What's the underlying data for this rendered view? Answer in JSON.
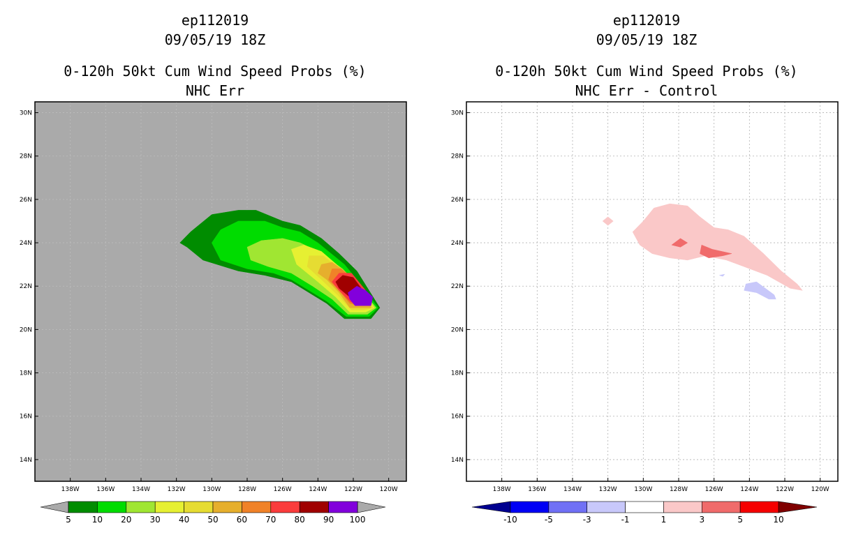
{
  "chart_data": [
    {
      "type": "filled-contour-map",
      "title_lines": [
        "ep112019",
        "09/05/19 18Z",
        "0-120h 50kt Cum Wind Speed Probs (%)",
        "NHC Err"
      ],
      "background_color": "#aaaaaa",
      "xlim": [
        -140,
        -119
      ],
      "ylim": [
        13,
        30.5
      ],
      "x_ticks": [
        "138W",
        "136W",
        "134W",
        "132W",
        "130W",
        "128W",
        "126W",
        "124W",
        "122W",
        "120W"
      ],
      "y_ticks": [
        "30N",
        "28N",
        "26N",
        "24N",
        "22N",
        "20N",
        "18N",
        "16N",
        "14N"
      ],
      "colorbar": {
        "labels": [
          "5",
          "10",
          "20",
          "30",
          "40",
          "50",
          "60",
          "70",
          "80",
          "90",
          "100"
        ],
        "colors": [
          "#008c00",
          "#00dc00",
          "#a0e632",
          "#e6f032",
          "#e6dc32",
          "#e6af2d",
          "#f08228",
          "#fa3c3c",
          "#a00000",
          "#8200dc"
        ],
        "left_extend_color": "#aaaaaa",
        "right_extend_color": "#aaaaaa"
      },
      "contours": [
        {
          "level": 5,
          "color": "#008c00",
          "points": [
            [
              -131.8,
              24.0
            ],
            [
              -131.2,
              24.5
            ],
            [
              -130.0,
              25.3
            ],
            [
              -128.5,
              25.5
            ],
            [
              -127.5,
              25.5
            ],
            [
              -126.0,
              25.0
            ],
            [
              -125.0,
              24.8
            ],
            [
              -123.8,
              24.2
            ],
            [
              -122.8,
              23.5
            ],
            [
              -121.8,
              22.7
            ],
            [
              -120.5,
              21.0
            ],
            [
              -121.0,
              20.5
            ],
            [
              -122.5,
              20.5
            ],
            [
              -123.5,
              21.2
            ],
            [
              -124.5,
              21.7
            ],
            [
              -125.5,
              22.2
            ],
            [
              -127.0,
              22.5
            ],
            [
              -128.5,
              22.7
            ],
            [
              -130.5,
              23.2
            ],
            [
              -131.4,
              23.8
            ]
          ]
        },
        {
          "level": 10,
          "color": "#00dc00",
          "points": [
            [
              -130.0,
              24.0
            ],
            [
              -129.5,
              24.6
            ],
            [
              -128.5,
              25.0
            ],
            [
              -127.0,
              25.0
            ],
            [
              -126.0,
              24.7
            ],
            [
              -125.0,
              24.5
            ],
            [
              -124.0,
              24.0
            ],
            [
              -122.5,
              23.0
            ],
            [
              -121.8,
              22.3
            ],
            [
              -120.6,
              21.0
            ],
            [
              -121.1,
              20.6
            ],
            [
              -122.4,
              20.6
            ],
            [
              -123.5,
              21.3
            ],
            [
              -124.5,
              21.8
            ],
            [
              -125.5,
              22.3
            ],
            [
              -126.5,
              22.6
            ],
            [
              -128.0,
              22.8
            ],
            [
              -129.5,
              23.2
            ]
          ]
        },
        {
          "level": 20,
          "color": "#a0e632",
          "points": [
            [
              -128.0,
              23.8
            ],
            [
              -127.2,
              24.1
            ],
            [
              -126.0,
              24.2
            ],
            [
              -125.0,
              24.0
            ],
            [
              -124.0,
              23.6
            ],
            [
              -122.6,
              22.8
            ],
            [
              -121.7,
              22.0
            ],
            [
              -120.7,
              21.0
            ],
            [
              -121.2,
              20.7
            ],
            [
              -122.3,
              20.7
            ],
            [
              -123.2,
              21.4
            ],
            [
              -124.3,
              22.0
            ],
            [
              -125.5,
              22.6
            ],
            [
              -126.8,
              22.9
            ],
            [
              -127.8,
              23.2
            ]
          ]
        },
        {
          "level": 30,
          "color": "#e6f032",
          "points": [
            [
              -125.5,
              23.7
            ],
            [
              -124.8,
              23.9
            ],
            [
              -123.8,
              23.6
            ],
            [
              -122.8,
              22.9
            ],
            [
              -121.7,
              22.0
            ],
            [
              -120.8,
              21.0
            ],
            [
              -121.3,
              20.8
            ],
            [
              -122.2,
              20.8
            ],
            [
              -123.0,
              21.5
            ],
            [
              -124.0,
              22.2
            ],
            [
              -125.2,
              23.0
            ]
          ]
        },
        {
          "level": 40,
          "color": "#e6dc32",
          "points": [
            [
              -124.5,
              23.4
            ],
            [
              -123.7,
              23.4
            ],
            [
              -122.8,
              22.8
            ],
            [
              -121.7,
              22.0
            ],
            [
              -120.9,
              21.0
            ],
            [
              -121.4,
              20.9
            ],
            [
              -122.1,
              20.9
            ],
            [
              -122.9,
              21.6
            ],
            [
              -123.8,
              22.3
            ],
            [
              -124.6,
              22.9
            ]
          ]
        },
        {
          "level": 50,
          "color": "#e6af2d",
          "points": [
            [
              -123.8,
              23.0
            ],
            [
              -123.2,
              23.1
            ],
            [
              -122.5,
              22.7
            ],
            [
              -121.6,
              22.0
            ],
            [
              -121.0,
              21.0
            ],
            [
              -121.5,
              21.0
            ],
            [
              -122.2,
              21.0
            ],
            [
              -122.8,
              21.7
            ],
            [
              -123.5,
              22.3
            ],
            [
              -124.0,
              22.6
            ]
          ]
        },
        {
          "level": 60,
          "color": "#f08228",
          "points": [
            [
              -123.2,
              22.8
            ],
            [
              -122.7,
              22.8
            ],
            [
              -121.8,
              22.2
            ],
            [
              -121.0,
              21.1
            ],
            [
              -121.6,
              21.1
            ],
            [
              -122.2,
              21.2
            ],
            [
              -122.8,
              21.8
            ],
            [
              -123.4,
              22.3
            ]
          ]
        },
        {
          "level": 70,
          "color": "#fa3c3c",
          "points": [
            [
              -122.8,
              22.6
            ],
            [
              -122.1,
              22.6
            ],
            [
              -121.3,
              21.8
            ],
            [
              -121.0,
              21.2
            ],
            [
              -121.7,
              21.1
            ],
            [
              -122.2,
              21.3
            ],
            [
              -122.8,
              21.8
            ],
            [
              -123.2,
              22.2
            ]
          ]
        },
        {
          "level": 80,
          "color": "#a00000",
          "points": [
            [
              -122.6,
              22.5
            ],
            [
              -122.0,
              22.4
            ],
            [
              -121.1,
              21.4
            ],
            [
              -121.6,
              21.3
            ],
            [
              -122.2,
              21.5
            ],
            [
              -122.8,
              21.9
            ],
            [
              -123.0,
              22.2
            ]
          ]
        },
        {
          "level": 90,
          "color": "#8200dc",
          "points": [
            [
              -121.8,
              22.0
            ],
            [
              -121.3,
              21.8
            ],
            [
              -120.9,
              21.5
            ],
            [
              -121.0,
              21.1
            ],
            [
              -121.9,
              21.1
            ],
            [
              -122.2,
              21.4
            ],
            [
              -122.3,
              21.7
            ]
          ]
        }
      ]
    },
    {
      "type": "filled-contour-map",
      "title_lines": [
        "ep112019",
        "09/05/19 18Z",
        "0-120h 50kt Cum Wind Speed Probs (%)",
        "NHC Err - Control"
      ],
      "background_color": "#ffffff",
      "xlim": [
        -140,
        -119
      ],
      "ylim": [
        13,
        30.5
      ],
      "x_ticks": [
        "138W",
        "136W",
        "134W",
        "132W",
        "130W",
        "128W",
        "126W",
        "124W",
        "122W",
        "120W"
      ],
      "y_ticks": [
        "30N",
        "28N",
        "26N",
        "24N",
        "22N",
        "20N",
        "18N",
        "16N",
        "14N"
      ],
      "colorbar": {
        "labels": [
          "-10",
          "-5",
          "-3",
          "-1",
          "1",
          "3",
          "5",
          "10"
        ],
        "colors": [
          "#0000f5",
          "#7070f5",
          "#c8c8fa",
          "#ffffff",
          "#fac8c8",
          "#f06b6b",
          "#f50000"
        ],
        "left_extend_color": "#000090",
        "right_extend_color": "#800000"
      },
      "contours": [
        {
          "level": 1,
          "color": "#fac8c8",
          "points": [
            [
              -130.0,
              25.0
            ],
            [
              -129.4,
              25.6
            ],
            [
              -128.5,
              25.8
            ],
            [
              -127.5,
              25.7
            ],
            [
              -126.8,
              25.2
            ],
            [
              -126.0,
              24.7
            ],
            [
              -125.2,
              24.6
            ],
            [
              -124.3,
              24.3
            ],
            [
              -123.2,
              23.5
            ],
            [
              -122.2,
              22.7
            ],
            [
              -121.3,
              22.1
            ],
            [
              -121.0,
              21.8
            ],
            [
              -121.7,
              21.9
            ],
            [
              -123.0,
              22.5
            ],
            [
              -124.3,
              22.9
            ],
            [
              -125.3,
              23.2
            ],
            [
              -126.5,
              23.4
            ],
            [
              -127.5,
              23.2
            ],
            [
              -128.5,
              23.3
            ],
            [
              -129.5,
              23.5
            ],
            [
              -130.2,
              23.9
            ],
            [
              -130.6,
              24.5
            ]
          ]
        },
        {
          "level": 1,
          "color": "#fac8c8",
          "points": [
            [
              -132.3,
              25.0
            ],
            [
              -132.0,
              25.2
            ],
            [
              -131.7,
              25.0
            ],
            [
              -132.0,
              24.8
            ]
          ]
        },
        {
          "level": 3,
          "color": "#f06b6b",
          "points": [
            [
              -126.7,
              23.9
            ],
            [
              -126.1,
              23.7
            ],
            [
              -125.0,
              23.5
            ],
            [
              -125.5,
              23.4
            ],
            [
              -126.3,
              23.3
            ],
            [
              -126.8,
              23.5
            ]
          ]
        },
        {
          "level": 3,
          "color": "#f06b6b",
          "points": [
            [
              -128.4,
              23.9
            ],
            [
              -127.9,
              24.2
            ],
            [
              -127.5,
              24.0
            ],
            [
              -127.9,
              23.8
            ]
          ]
        },
        {
          "level": -1,
          "color": "#c8c8fa",
          "points": [
            [
              -124.2,
              22.1
            ],
            [
              -123.6,
              22.2
            ],
            [
              -123.1,
              21.9
            ],
            [
              -122.6,
              21.6
            ],
            [
              -122.5,
              21.4
            ],
            [
              -122.9,
              21.4
            ],
            [
              -123.6,
              21.7
            ],
            [
              -124.3,
              21.8
            ]
          ]
        },
        {
          "level": -1,
          "color": "#c8c8fa",
          "points": [
            [
              -125.7,
              22.5
            ],
            [
              -125.4,
              22.55
            ],
            [
              -125.5,
              22.45
            ]
          ]
        }
      ]
    }
  ]
}
